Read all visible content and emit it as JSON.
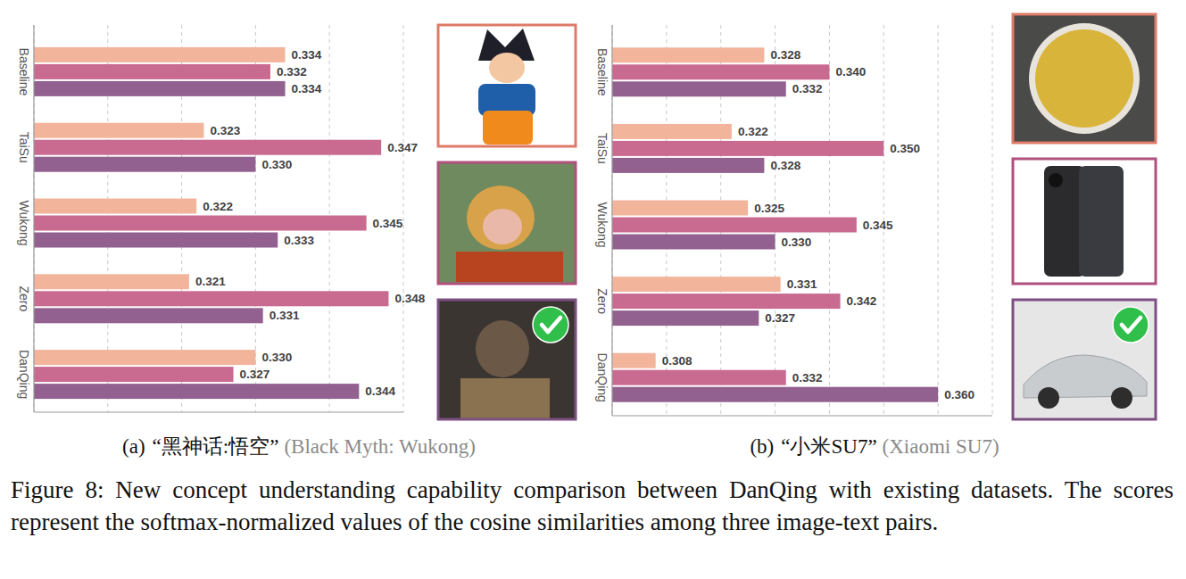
{
  "chart_data": [
    {
      "type": "bar",
      "orientation": "horizontal",
      "label": "(a)",
      "title": "“黑神话:悟空”",
      "subtitle": "(Black Myth: Wukong)",
      "categories": [
        "Baseline",
        "TaiSu",
        "Wukong",
        "Zero",
        "DanQing"
      ],
      "series": [
        {
          "color": "#f3b49c",
          "values": [
            0.334,
            0.323,
            0.322,
            0.321,
            0.33
          ],
          "value_labels": [
            "0.334",
            "0.323",
            "0.322",
            "0.321",
            "0.330"
          ]
        },
        {
          "color": "#c96a91",
          "values": [
            0.332,
            0.347,
            0.345,
            0.348,
            0.327
          ],
          "value_labels": [
            "0.332",
            "0.347",
            "0.345",
            "0.348",
            "0.327"
          ]
        },
        {
          "color": "#93618f",
          "values": [
            0.334,
            0.33,
            0.333,
            0.331,
            0.344
          ],
          "value_labels": [
            "0.334",
            "0.330",
            "0.333",
            "0.331",
            "0.344"
          ]
        }
      ],
      "xlim": [
        0.3,
        0.35
      ],
      "xticks": [
        0.3,
        0.31,
        0.32,
        0.33,
        0.34,
        0.35
      ],
      "grid": true,
      "tick_labels": false,
      "data_labels": true
    },
    {
      "type": "bar",
      "orientation": "horizontal",
      "label": "(b)",
      "title": "“小米SU7”",
      "subtitle": "(Xiaomi SU7)",
      "categories": [
        "Baseline",
        "TaiSu",
        "Wukong",
        "Zero",
        "DanQing"
      ],
      "series": [
        {
          "color": "#f3b49c",
          "values": [
            0.328,
            0.322,
            0.325,
            0.331,
            0.308
          ],
          "value_labels": [
            "0.328",
            "0.322",
            "0.325",
            "0.331",
            "0.308"
          ]
        },
        {
          "color": "#c96a91",
          "values": [
            0.34,
            0.35,
            0.345,
            0.342,
            0.332
          ],
          "value_labels": [
            "0.340",
            "0.350",
            "0.345",
            "0.342",
            "0.332"
          ]
        },
        {
          "color": "#93618f",
          "values": [
            0.332,
            0.328,
            0.33,
            0.327,
            0.36
          ],
          "value_labels": [
            "0.332",
            "0.328",
            "0.330",
            "0.327",
            "0.360"
          ]
        }
      ],
      "xlim": [
        0.3,
        0.37
      ],
      "xticks": [
        0.3,
        0.31,
        0.32,
        0.33,
        0.34,
        0.35,
        0.36,
        0.37
      ],
      "grid": true,
      "tick_labels": false,
      "data_labels": true
    }
  ],
  "caption": "Figure 8: New concept understanding capability comparison between DanQing with existing datasets. The scores represent the softmax-normalized values of the cosine similarities among three image-text pairs."
}
